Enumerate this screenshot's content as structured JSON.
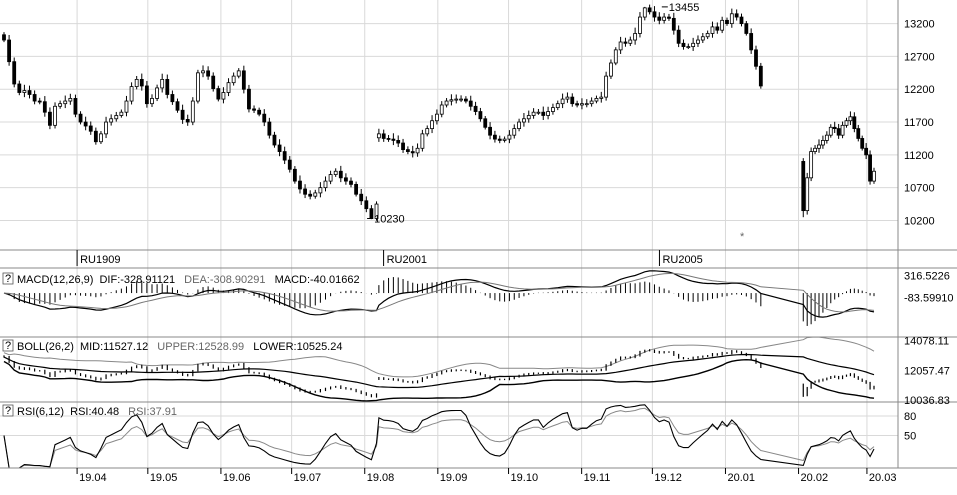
{
  "chart_data": [
    {
      "type": "candlestick",
      "panel": "price",
      "y_ticks": [
        "13200",
        "12700",
        "12200",
        "11700",
        "11200",
        "10700",
        "10200"
      ],
      "y_range": [
        9750,
        13560
      ],
      "contract_labels": [
        {
          "text": "RU1909",
          "date": "2019-04-01"
        },
        {
          "text": "RU2001",
          "date": "2019-08-09"
        },
        {
          "text": "RU2005",
          "date": "2019-12-04"
        }
      ],
      "annotations": [
        {
          "text": "13455",
          "date": "2019-12-05",
          "value": 13455
        },
        {
          "text": "10230",
          "date": "2019-08-02",
          "value": 10230
        }
      ],
      "segments": [
        {
          "from": "2019-03-01",
          "to": "2019-08-06",
          "closes": [
            12950,
            12620,
            12280,
            12150,
            12180,
            12120,
            12020,
            12010,
            11850,
            11650,
            11940,
            11980,
            12020,
            12060,
            11820,
            11700,
            11640,
            11560,
            11400,
            11520,
            11700,
            11750,
            11800,
            11850,
            12020,
            12240,
            12350,
            12250,
            11980,
            12060,
            12220,
            12350,
            12120,
            12010,
            11880,
            11740,
            11700,
            12020,
            12450,
            12480,
            12400,
            12210,
            12050,
            12150,
            12300,
            12400,
            12480,
            12200,
            11900,
            11880,
            11820,
            11700,
            11500,
            11350,
            11250,
            11120,
            10980,
            10800,
            10680,
            10600,
            10570,
            10620,
            10700,
            10800,
            10900,
            10950,
            10850,
            10800,
            10750,
            10600,
            10500,
            10380,
            10230,
            10450
          ]
        },
        {
          "from": "2019-08-07",
          "to": "2020-01-16",
          "closes": [
            11520,
            11450,
            11440,
            11420,
            11380,
            11280,
            11250,
            11230,
            11300,
            11520,
            11600,
            11720,
            11820,
            11960,
            12020,
            12040,
            12050,
            12050,
            12020,
            11940,
            11860,
            11750,
            11620,
            11500,
            11440,
            11420,
            11440,
            11500,
            11600,
            11700,
            11750,
            11800,
            11850,
            11850,
            11800,
            11860,
            11920,
            11980,
            12050,
            12080,
            11980,
            11960,
            11980,
            11980,
            12020,
            12060,
            12080,
            12400,
            12600,
            12800,
            12920,
            12900,
            12950,
            13050,
            13300,
            13440,
            13380,
            13300,
            13250,
            13300,
            13280,
            13100,
            12900,
            12850,
            12850,
            12900,
            12950,
            13000,
            13050,
            13150,
            13100,
            13250,
            13200,
            13350,
            13300,
            13200,
            13050,
            12800,
            12550,
            12250
          ]
        },
        {
          "from": "2020-02-03",
          "to": "2020-03-04",
          "closes": [
            10350,
            10850,
            11250,
            11300,
            11350,
            11420,
            11500,
            11620,
            11600,
            11500,
            11650,
            11720,
            11780,
            11600,
            11450,
            11300,
            11200,
            10800,
            10950
          ]
        }
      ]
    },
    {
      "type": "line",
      "panel": "macd",
      "label": "MACD(12,26,9)",
      "values": {
        "DIF": "-328.91121",
        "DEA": "-308.90291",
        "MACD": "-40.01662"
      },
      "y_ticks": [
        "316.5226",
        "-83.59910"
      ],
      "y_range": [
        -800,
        420
      ],
      "series": [
        {
          "name": "DIF"
        },
        {
          "name": "DEA"
        },
        {
          "name": "MACD"
        }
      ]
    },
    {
      "type": "line",
      "panel": "boll",
      "label": "BOLL(26,2)",
      "values": {
        "MID": "11527.12",
        "UPPER": "12528.99",
        "LOWER": "10525.24"
      },
      "y_ticks": [
        "14078.11",
        "12057.47",
        "10036.83"
      ],
      "y_range": [
        9900,
        14250
      ],
      "series": [
        {
          "name": "MID"
        },
        {
          "name": "UPPER"
        },
        {
          "name": "LOWER"
        }
      ]
    },
    {
      "type": "line",
      "panel": "rsi",
      "label": "RSI(6,12)",
      "values": {
        "RSI": "40.48",
        "RSI12": "37.91"
      },
      "y_ticks": [
        "80",
        "50"
      ],
      "y_range": [
        0,
        100
      ],
      "series": [
        {
          "name": "RSI"
        },
        {
          "name": "RSI"
        }
      ]
    }
  ],
  "x_axis": {
    "months": [
      {
        "label": "19.04",
        "date": "2019-04-01"
      },
      {
        "label": "19.05",
        "date": "2019-05-01"
      },
      {
        "label": "19.06",
        "date": "2019-06-01"
      },
      {
        "label": "19.07",
        "date": "2019-07-01"
      },
      {
        "label": "19.08",
        "date": "2019-08-01"
      },
      {
        "label": "19.09",
        "date": "2019-09-01"
      },
      {
        "label": "19.10",
        "date": "2019-10-01"
      },
      {
        "label": "19.11",
        "date": "2019-11-01"
      },
      {
        "label": "19.12",
        "date": "2019-12-01"
      },
      {
        "label": "20.01",
        "date": "2020-01-01"
      },
      {
        "label": "20.02",
        "date": "2020-02-01"
      },
      {
        "label": "20.03",
        "date": "2020-03-01"
      }
    ]
  },
  "labels": {
    "help_glyph": "?",
    "macd_name": "MACD(12,26,9)",
    "macd_dif": "DIF:-328.91121",
    "macd_dea": "DEA:-308.90291",
    "macd_macd": "MACD:-40.01662",
    "boll_name": "BOLL(26,2)",
    "boll_mid": "MID:11527.12",
    "boll_upper": "UPPER:12528.99",
    "boll_lower": "LOWER:10525.24",
    "rsi_name": "RSI(6,12)",
    "rsi_1": "RSI:40.48",
    "rsi_2": "RSI:37.91",
    "star": "*"
  },
  "colors": {
    "candle": "#000000",
    "grid": "#d9d9d9",
    "divider": "#888888",
    "label_gray": "#666666"
  }
}
